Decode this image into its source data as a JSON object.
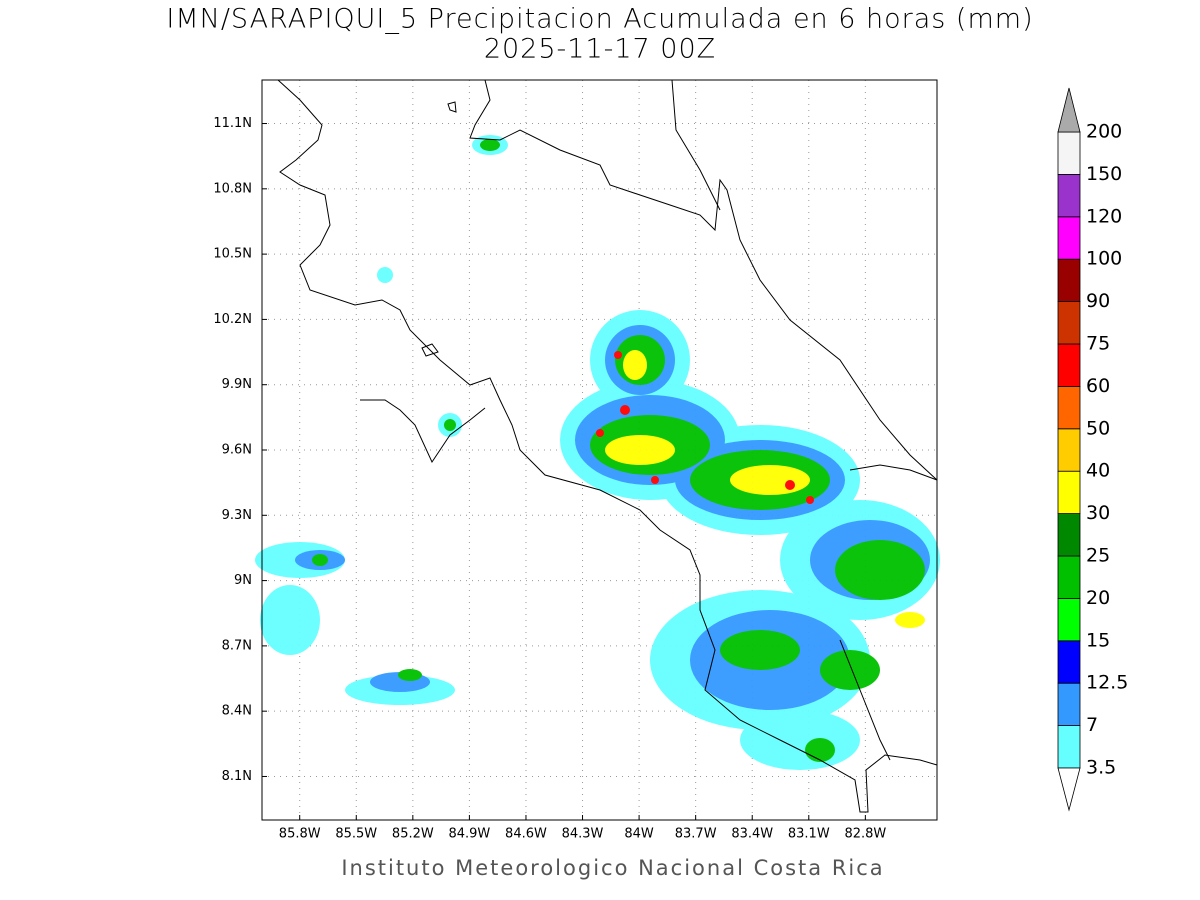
{
  "header": {
    "title": "IMN/SARAPIQUI_5 Precipitacion Acumulada en 6 horas (mm)",
    "subtitle": "2025-11-17 00Z"
  },
  "map": {
    "xlim": [
      -86.0,
      -82.42
    ],
    "ylim": [
      7.9,
      11.3
    ],
    "xticks": [
      {
        "value": -85.8,
        "label": "85.8W"
      },
      {
        "value": -85.5,
        "label": "85.5W"
      },
      {
        "value": -85.2,
        "label": "85.2W"
      },
      {
        "value": -84.9,
        "label": "84.9W"
      },
      {
        "value": -84.6,
        "label": "84.6W"
      },
      {
        "value": -84.3,
        "label": "84.3W"
      },
      {
        "value": -84.0,
        "label": "84W"
      },
      {
        "value": -83.7,
        "label": "83.7W"
      },
      {
        "value": -83.4,
        "label": "83.4W"
      },
      {
        "value": -83.1,
        "label": "83.1W"
      },
      {
        "value": -82.8,
        "label": "82.8W"
      }
    ],
    "yticks": [
      {
        "value": 8.1,
        "label": "8.1N"
      },
      {
        "value": 8.4,
        "label": "8.4N"
      },
      {
        "value": 8.7,
        "label": "8.7N"
      },
      {
        "value": 9.0,
        "label": "9N"
      },
      {
        "value": 9.3,
        "label": "9.3N"
      },
      {
        "value": 9.6,
        "label": "9.6N"
      },
      {
        "value": 9.9,
        "label": "9.9N"
      },
      {
        "value": 10.2,
        "label": "10.2N"
      },
      {
        "value": 10.5,
        "label": "10.5N"
      },
      {
        "value": 10.8,
        "label": "10.8N"
      },
      {
        "value": 11.1,
        "label": "11.1N"
      }
    ],
    "grid": true
  },
  "colorbar": {
    "levels": [
      3.5,
      7,
      12.5,
      15,
      20,
      25,
      30,
      40,
      50,
      60,
      75,
      90,
      100,
      120,
      150,
      200
    ],
    "colors": [
      "#66ffff",
      "#3399ff",
      "#0000ff",
      "#00ff00",
      "#00c000",
      "#008800",
      "#ffff00",
      "#ffcc00",
      "#ff6600",
      "#ff0000",
      "#cc3300",
      "#990000",
      "#ff00ff",
      "#9933cc",
      "#f5f5f5"
    ],
    "under_color": "#ffffff",
    "over_color": "#aaaaaa"
  },
  "footer": {
    "credit": "Instituto Meteorologico Nacional Costa Rica"
  }
}
